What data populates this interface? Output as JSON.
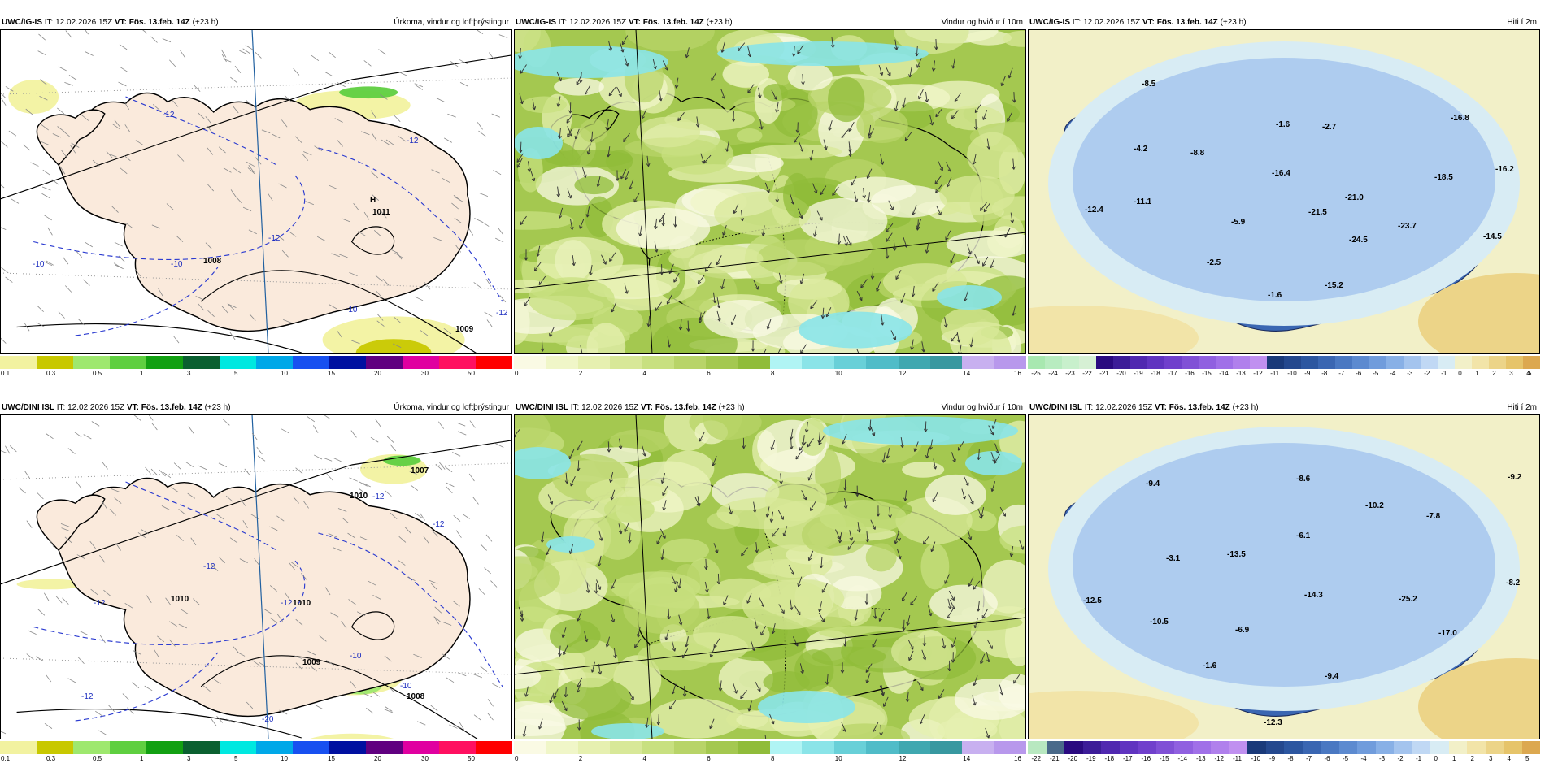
{
  "rows": [
    {
      "model": "UWC/IG-IS",
      "panels": [
        {
          "field": "Úrkoma, vindur og loftþrýstingur",
          "type": "precip",
          "labels": [
            "1011",
            "-12",
            "-12",
            "-12",
            "-10",
            "-10",
            "-10",
            "-12",
            "1008",
            "1009"
          ]
        },
        {
          "field": "Vindur og hviður í 10m",
          "type": "wind",
          "labels": []
        },
        {
          "field": "Hiti í 2m",
          "type": "temp",
          "labels": [
            "-8.5",
            "-1.6",
            "-2.7",
            "-16.8",
            "-4.2",
            "-8.8",
            "-16.4",
            "-21.0",
            "-18.5",
            "-16.2",
            "-12.4",
            "-11.1",
            "-5.9",
            "-21.5",
            "-23.7",
            "-24.5",
            "-14.5",
            "-2.5",
            "-15.2",
            "-1.6"
          ]
        }
      ]
    },
    {
      "model": "UWC/DINI ISL",
      "panels": [
        {
          "field": "Úrkoma, vindur og loftþrýstingur",
          "type": "precip",
          "labels": [
            "1007",
            "1010",
            "1010",
            "1010",
            "-12",
            "-12",
            "-12",
            "-12",
            "-12",
            "-10",
            "-10",
            "-12",
            "-20",
            "1009",
            "1008"
          ]
        },
        {
          "field": "Vindur og hviður í 10m",
          "type": "wind",
          "labels": []
        },
        {
          "field": "Hiti í 2m",
          "type": "temp",
          "labels": [
            "-9.4",
            "-8.6",
            "-9.2",
            "-10.2",
            "-7.8",
            "-3.1",
            "-13.5",
            "-6.1",
            "-14.3",
            "-25.2",
            "-8.2",
            "-12.5",
            "-10.5",
            "-6.9",
            "-17.0",
            "-1.6",
            "-9.4",
            "-12.3"
          ]
        }
      ]
    }
  ],
  "header": {
    "it_label": "IT:",
    "it_value": "12.02.2026 15Z",
    "vt_label": "VT:",
    "vt_value": "Fös. 13.feb. 14Z",
    "lead": "(+23 h)"
  },
  "colorbars": {
    "precip": {
      "colors": [
        "#f2f2a0",
        "#c8c800",
        "#9ee86e",
        "#5fcf40",
        "#12a012",
        "#0a6030",
        "#00e8e0",
        "#00a8e8",
        "#1850f0",
        "#0010a0",
        "#600080",
        "#e000a0",
        "#ff1060",
        "#ff0000"
      ],
      "ticks": [
        "0.1",
        "0.3",
        "0.5",
        "1",
        "3",
        "5",
        "10",
        "15",
        "20",
        "30",
        "50"
      ]
    },
    "wind": {
      "colors": [
        "#fafae4",
        "#f0f6c8",
        "#e6f0b0",
        "#d8e898",
        "#c8e080",
        "#b8d468",
        "#a4c850",
        "#90bc3a",
        "#b0f4f4",
        "#8ae4e8",
        "#68d0d8",
        "#50bcc8",
        "#40a8b0",
        "#3898a0",
        "#c8b0f0",
        "#b898ec"
      ],
      "ticks": [
        "0",
        "2",
        "4",
        "6",
        "8",
        "10",
        "12",
        "14",
        "16"
      ]
    },
    "temp_row1": {
      "colors": [
        "#a8e8b0",
        "#b8ecc0",
        "#c8f0cc",
        "#d6f0d4",
        "#2a0a80",
        "#3c1c98",
        "#5028b0",
        "#6034c0",
        "#7040cc",
        "#8050d6",
        "#9060e0",
        "#a070e8",
        "#b080ec",
        "#c090f0",
        "#1a3a7a",
        "#24488e",
        "#2c56a0",
        "#3a66b2",
        "#4a78c2",
        "#5c8ad0",
        "#709cdc",
        "#88b0e6",
        "#a4c4ee",
        "#c0d8f4",
        "#d8ecf4",
        "#f2f0c8",
        "#f2e4a8",
        "#ecd488",
        "#e6c46a",
        "#dca850"
      ],
      "ticks": [
        "-25",
        "-24",
        "-23",
        "-22",
        "-21",
        "-20",
        "-19",
        "-18",
        "-17",
        "-16",
        "-15",
        "-14",
        "-13",
        "-12",
        "-11",
        "-10",
        "-9",
        "-8",
        "-7",
        "-6",
        "-5",
        "-4",
        "-3",
        "-2",
        "-1",
        "0",
        "1",
        "2",
        "3",
        "4",
        "5"
      ]
    },
    "temp_row2": {
      "colors": [
        "#b8e8c0",
        "#4a6a8a",
        "#2a0a80",
        "#3c1c98",
        "#5028b0",
        "#6034c0",
        "#7040cc",
        "#8050d6",
        "#9060e0",
        "#a070e8",
        "#b080ec",
        "#c090f0",
        "#1a3a7a",
        "#24488e",
        "#2c56a0",
        "#3a66b2",
        "#4a78c2",
        "#5c8ad0",
        "#709cdc",
        "#88b0e6",
        "#a4c4ee",
        "#c0d8f4",
        "#d8ecf4",
        "#f2f0c8",
        "#f2e4a8",
        "#ecd488",
        "#e6c46a",
        "#dca850"
      ],
      "ticks": [
        "-22",
        "-21",
        "-20",
        "-19",
        "-18",
        "-17",
        "-16",
        "-15",
        "-14",
        "-13",
        "-12",
        "-11",
        "-10",
        "-9",
        "-8",
        "-7",
        "-6",
        "-5",
        "-4",
        "-3",
        "-2",
        "-1",
        "0",
        "1",
        "2",
        "3",
        "4",
        "5"
      ]
    }
  }
}
